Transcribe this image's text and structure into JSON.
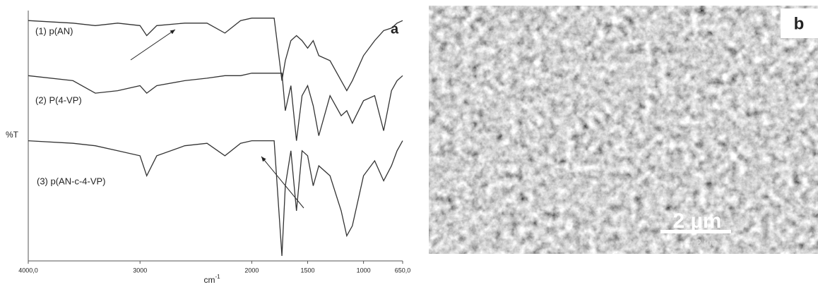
{
  "chart_data": {
    "type": "line",
    "y_label": "%T",
    "x_label": {
      "base": "cm",
      "sup": "-1"
    },
    "panel_label": "a",
    "xlim": [
      4000,
      650
    ],
    "xticks": [
      {
        "value": 4000,
        "label": "4000,0"
      },
      3000,
      2000,
      1500,
      1000,
      {
        "value": 650,
        "label": "650,0"
      }
    ],
    "ylim": [
      0,
      100
    ],
    "x": [
      4000,
      3600,
      3400,
      3200,
      3000,
      2940,
      2850,
      2600,
      2400,
      2240,
      2100,
      2000,
      1900,
      1800,
      1730,
      1700,
      1650,
      1600,
      1550,
      1500,
      1450,
      1400,
      1300,
      1200,
      1150,
      1100,
      1000,
      900,
      820,
      750,
      700,
      650
    ],
    "series": [
      {
        "name": "(1) p(AN)",
        "color": "#333333",
        "values": [
          96,
          95,
          94,
          95,
          94,
          90,
          94,
          95,
          95,
          91,
          96,
          97,
          97,
          97,
          72,
          80,
          88,
          90,
          88,
          85,
          88,
          82,
          80,
          72,
          68,
          72,
          82,
          88,
          92,
          93,
          95,
          96
        ]
      },
      {
        "name": "(2) P(4-VP)",
        "color": "#333333",
        "values": [
          74,
          72,
          67,
          68,
          70,
          67,
          70,
          72,
          73,
          74,
          74,
          75,
          75,
          75,
          75,
          60,
          70,
          48,
          66,
          70,
          62,
          50,
          66,
          58,
          60,
          55,
          64,
          66,
          52,
          68,
          72,
          74
        ]
      },
      {
        "name": "(3) p(AN-c-4-VP)",
        "color": "#333333",
        "values": [
          48,
          47,
          46,
          44,
          42,
          34,
          42,
          46,
          47,
          42,
          47,
          48,
          48,
          48,
          2,
          30,
          44,
          20,
          44,
          42,
          30,
          38,
          34,
          20,
          10,
          14,
          34,
          40,
          32,
          38,
          44,
          48
        ]
      }
    ]
  },
  "image_panel": {
    "label": "b",
    "scale_bar": "2 µm",
    "scale_text": "2 µm"
  }
}
